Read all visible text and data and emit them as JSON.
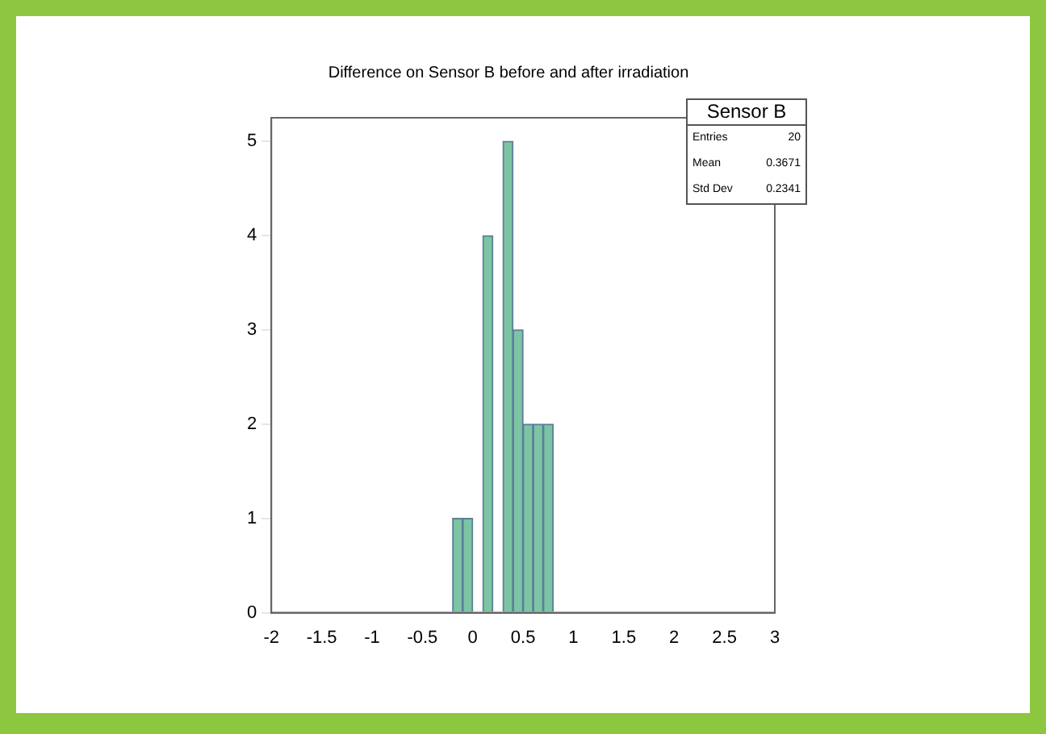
{
  "chart_data": {
    "type": "histogram",
    "title": "Difference on Sensor B before and after irradiation",
    "bins": [
      -2,
      -1.9,
      -1.8,
      -1.7,
      -1.6,
      -1.5,
      -1.4,
      -1.3,
      -1.2,
      -1.1,
      -1,
      -0.9,
      -0.8,
      -0.7,
      -0.6,
      -0.5,
      -0.4,
      -0.3,
      -0.2,
      -0.1,
      0,
      0.1,
      0.2,
      0.3,
      0.4,
      0.5,
      0.6,
      0.7,
      0.8,
      0.9,
      1,
      1.1,
      1.2,
      1.3,
      1.4,
      1.5,
      1.6,
      1.7,
      1.8,
      1.9,
      2,
      2.1,
      2.2,
      2.3,
      2.4,
      2.5,
      2.6,
      2.7,
      2.8,
      2.9,
      3
    ],
    "values": [
      0,
      0,
      0,
      0,
      0,
      0,
      0,
      0,
      0,
      0,
      0,
      0,
      0,
      0,
      0,
      0,
      0,
      0,
      1,
      1,
      0,
      4,
      0,
      5,
      3,
      2,
      2,
      2,
      0,
      0,
      0,
      0,
      0,
      0,
      0,
      0,
      0,
      0,
      0,
      0,
      0,
      0,
      0,
      0,
      0,
      0,
      0,
      0,
      0,
      0
    ],
    "color": "#7dc4a4",
    "xlim": [
      -2,
      3
    ],
    "xticks": [
      -2,
      -1.5,
      -1,
      -0.5,
      0,
      0.5,
      1,
      1.5,
      2,
      2.5,
      3
    ],
    "ylim": [
      0,
      5.25
    ],
    "yticks": [
      0,
      1,
      2,
      3,
      4,
      5
    ],
    "grid": false,
    "legend": false,
    "annotations": [
      "Sensor B",
      "Entries",
      "20",
      "Mean",
      "0.3671",
      "Std Dev",
      "0.2341"
    ]
  }
}
